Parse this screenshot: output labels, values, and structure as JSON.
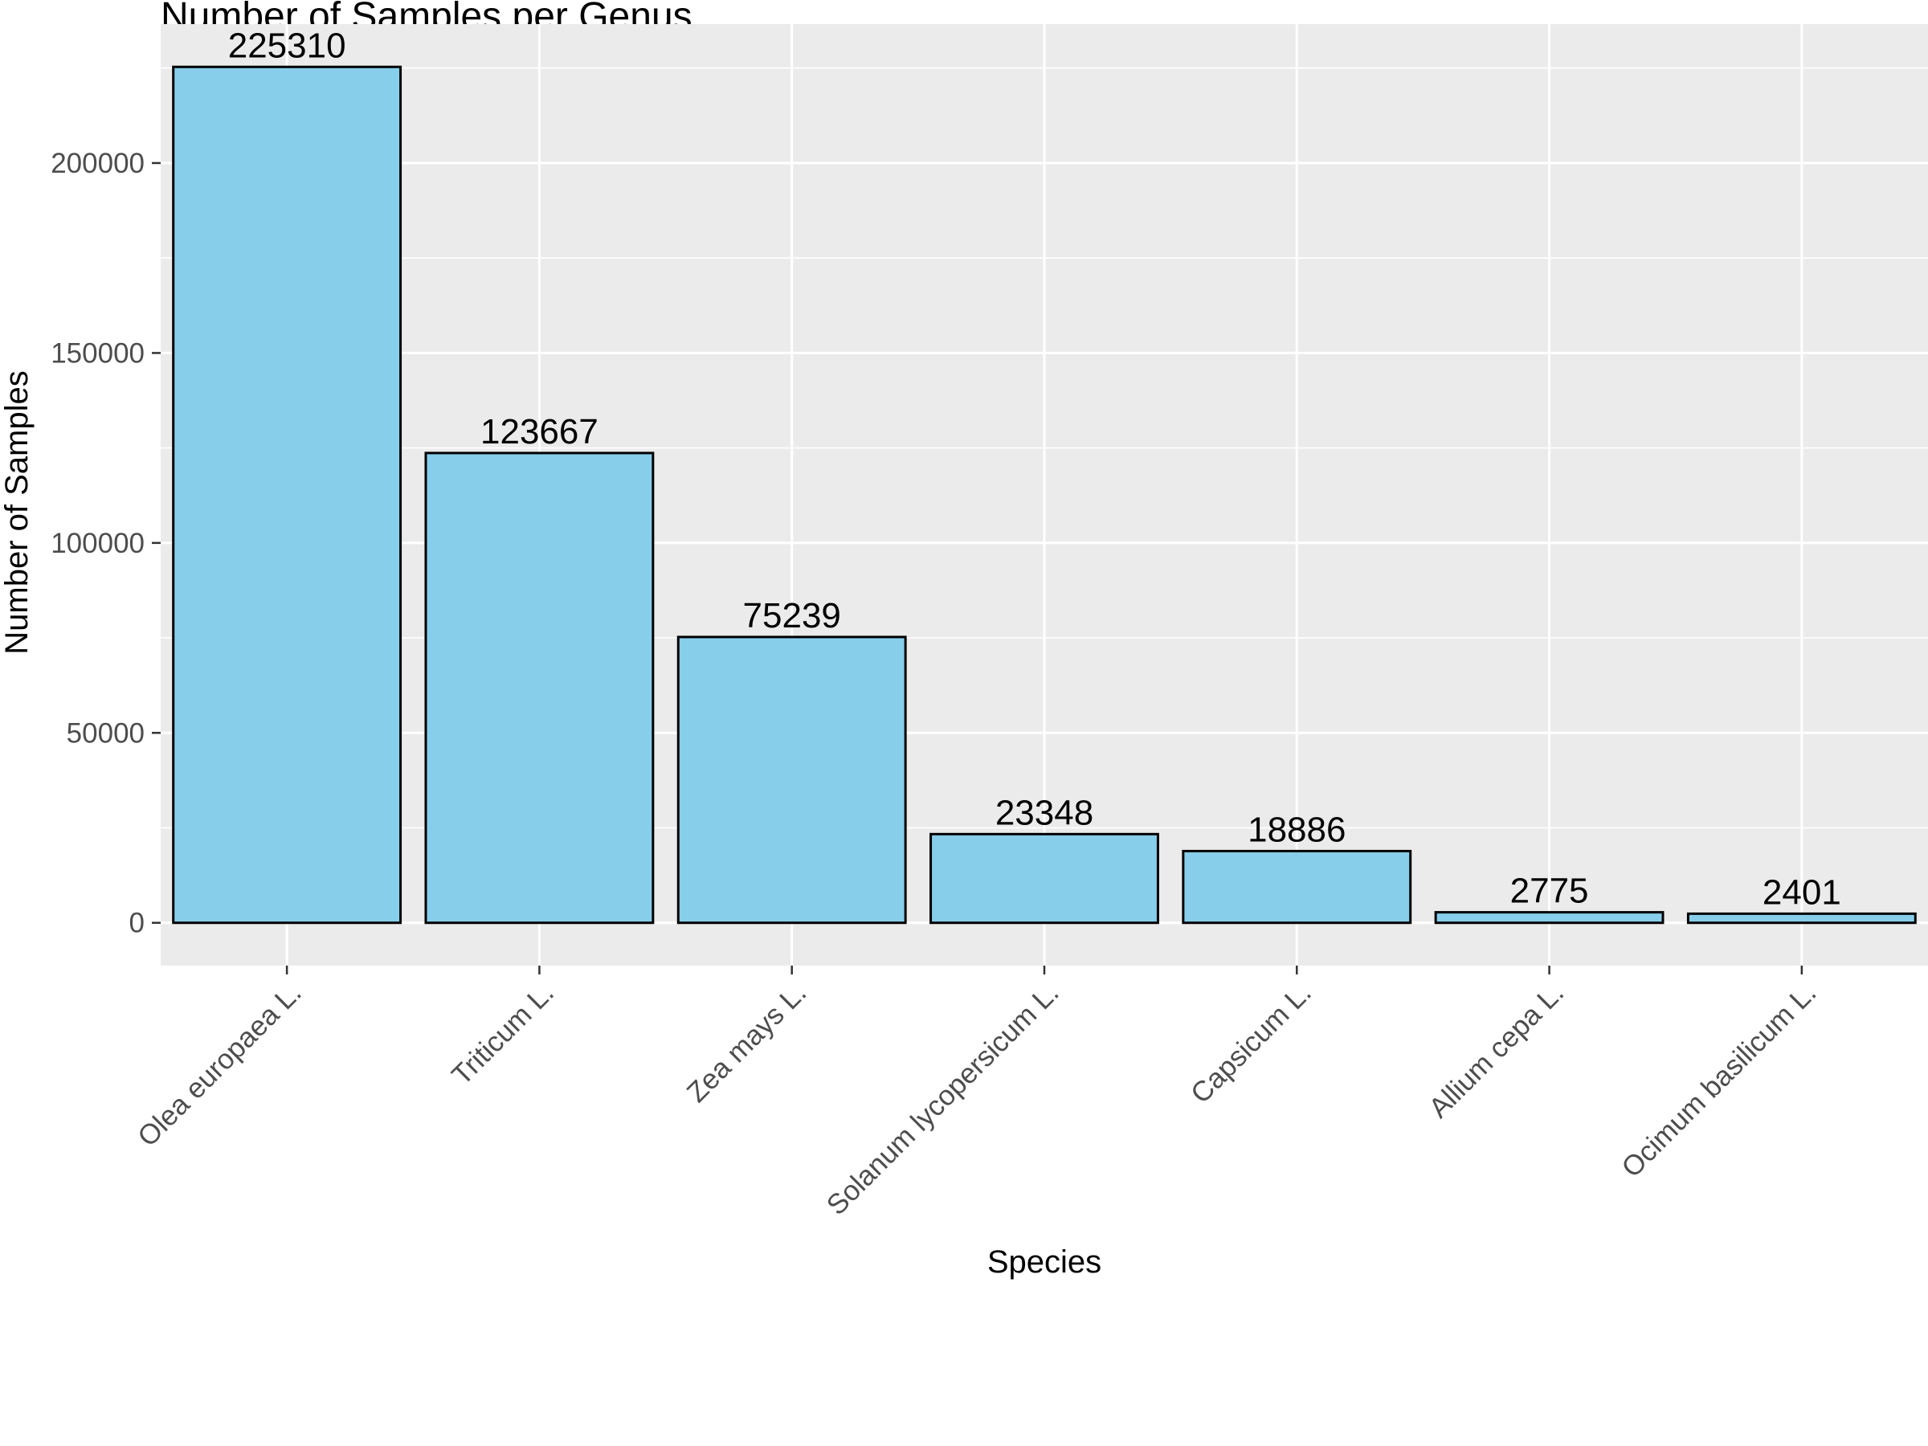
{
  "chart_data": {
    "type": "bar",
    "title": "Number of Samples per Genus",
    "xlabel": "Species",
    "ylabel": "Number of Samples",
    "categories": [
      "Olea europaea L.",
      "Triticum L.",
      "Zea mays L.",
      "Solanum lycopersicum L.",
      "Capsicum L.",
      "Allium cepa L.",
      "Ocimum basilicum L."
    ],
    "values": [
      225310,
      123667,
      75239,
      23348,
      18886,
      2775,
      2401
    ],
    "data_labels": [
      "225310",
      "123667",
      "75239",
      "23348",
      "18886",
      "2775",
      "2401"
    ],
    "yticks": [
      0,
      50000,
      100000,
      150000,
      200000
    ],
    "ytick_labels": [
      "0",
      "50000",
      "100000",
      "150000",
      "200000"
    ],
    "ylim": [
      -11265,
      236575
    ],
    "grid": true,
    "legend": "none",
    "colors": {
      "bar_fill": "#87CEEB",
      "bar_stroke": "#000000",
      "panel_bg": "#EBEBEB",
      "grid": "#FFFFFF",
      "tick_label": "#4D4D4D",
      "text": "#000000"
    }
  }
}
